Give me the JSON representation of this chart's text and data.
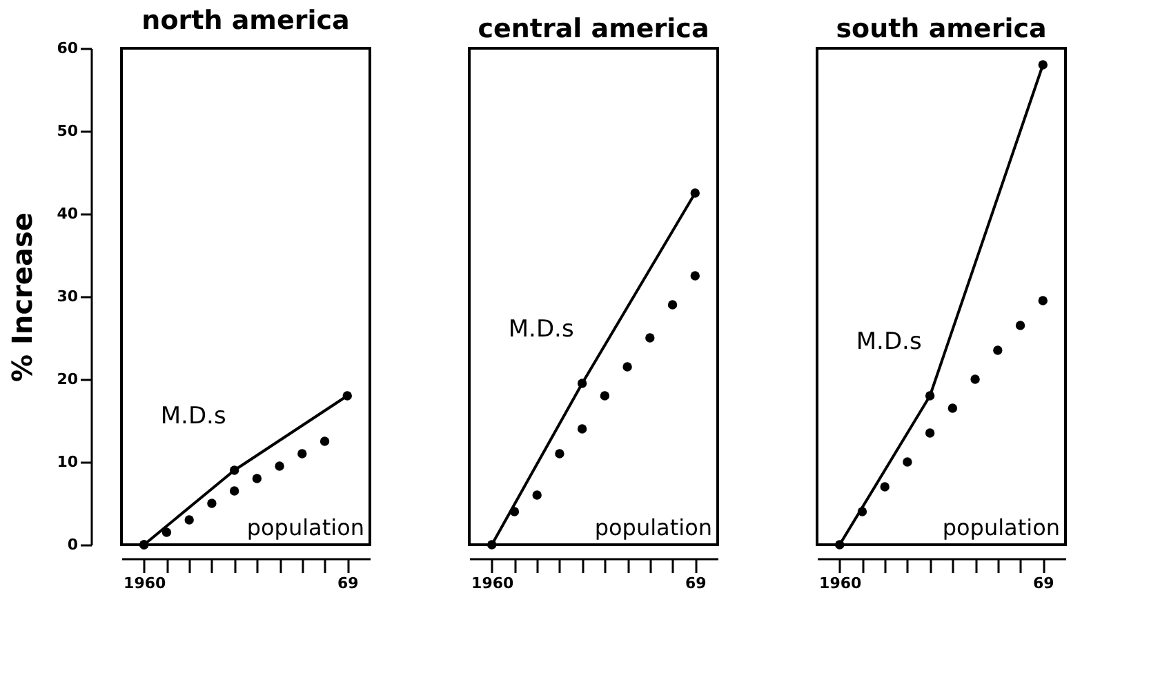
{
  "chart_data": [
    {
      "type": "line",
      "title": "north america",
      "ylabel": "% Increase",
      "xlim": [
        1959,
        1970
      ],
      "ylim": [
        0,
        60
      ],
      "yticks": [
        0,
        10,
        20,
        30,
        40,
        50,
        60
      ],
      "xticks": [
        {
          "value": 1960,
          "label": "1960"
        },
        {
          "value": 1961,
          "label": null
        },
        {
          "value": 1962,
          "label": null
        },
        {
          "value": 1963,
          "label": null
        },
        {
          "value": 1964,
          "label": null
        },
        {
          "value": 1965,
          "label": null
        },
        {
          "value": 1966,
          "label": null
        },
        {
          "value": 1967,
          "label": null
        },
        {
          "value": 1968,
          "label": null
        },
        {
          "value": 1969,
          "label": "69"
        }
      ],
      "series": [
        {
          "name": "M.D.s",
          "type": "line",
          "color": "#000000",
          "marker": "circle",
          "line_style": "solid",
          "x": [
            1960,
            1964,
            1969
          ],
          "values": [
            0,
            9,
            18
          ]
        },
        {
          "name": "population",
          "type": "scatter",
          "color": "#000000",
          "marker": "circle",
          "x": [
            1960,
            1961,
            1962,
            1963,
            1964,
            1965,
            1966,
            1967,
            1968
          ],
          "values": [
            0,
            1.5,
            3,
            5,
            6.5,
            8,
            9.5,
            11,
            12.5
          ]
        }
      ],
      "legend": false,
      "grid": false
    },
    {
      "type": "line",
      "title": "central america",
      "xlim": [
        1959,
        1970
      ],
      "ylim": [
        0,
        60
      ],
      "tick_labels": "x",
      "xticks": [
        {
          "value": 1960,
          "label": "1960"
        },
        {
          "value": 1961,
          "label": null
        },
        {
          "value": 1962,
          "label": null
        },
        {
          "value": 1963,
          "label": null
        },
        {
          "value": 1964,
          "label": null
        },
        {
          "value": 1965,
          "label": null
        },
        {
          "value": 1966,
          "label": null
        },
        {
          "value": 1967,
          "label": null
        },
        {
          "value": 1968,
          "label": null
        },
        {
          "value": 1969,
          "label": "69"
        }
      ],
      "series": [
        {
          "name": "M.D.s",
          "type": "line",
          "color": "#000000",
          "marker": "circle",
          "line_style": "solid",
          "x": [
            1960,
            1964,
            1969
          ],
          "values": [
            0,
            19.5,
            42.5
          ]
        },
        {
          "name": "population",
          "type": "scatter",
          "color": "#000000",
          "marker": "circle",
          "x": [
            1961,
            1962,
            1963,
            1964,
            1965,
            1966,
            1967,
            1968,
            1969
          ],
          "values": [
            4,
            6,
            11,
            14,
            18,
            21.5,
            25,
            29,
            32.5
          ]
        }
      ],
      "legend": false,
      "grid": false
    },
    {
      "type": "line",
      "title": "south america",
      "xlim": [
        1959,
        1970
      ],
      "ylim": [
        0,
        60
      ],
      "tick_labels": "x",
      "xticks": [
        {
          "value": 1960,
          "label": "1960"
        },
        {
          "value": 1961,
          "label": null
        },
        {
          "value": 1962,
          "label": null
        },
        {
          "value": 1963,
          "label": null
        },
        {
          "value": 1964,
          "label": null
        },
        {
          "value": 1965,
          "label": null
        },
        {
          "value": 1966,
          "label": null
        },
        {
          "value": 1967,
          "label": null
        },
        {
          "value": 1968,
          "label": null
        },
        {
          "value": 1969,
          "label": "69"
        }
      ],
      "series": [
        {
          "name": "M.D.s",
          "type": "line",
          "color": "#000000",
          "marker": "circle",
          "line_style": "solid",
          "x": [
            1960,
            1964,
            1969
          ],
          "values": [
            0,
            18,
            58
          ]
        },
        {
          "name": "population",
          "type": "scatter",
          "color": "#000000",
          "marker": "circle",
          "x": [
            1961,
            1962,
            1963,
            1964,
            1965,
            1966,
            1967,
            1968,
            1969
          ],
          "values": [
            4,
            7,
            10,
            13.5,
            16.5,
            20,
            23.5,
            26.5,
            29.5
          ]
        }
      ],
      "legend": false,
      "grid": false
    }
  ]
}
